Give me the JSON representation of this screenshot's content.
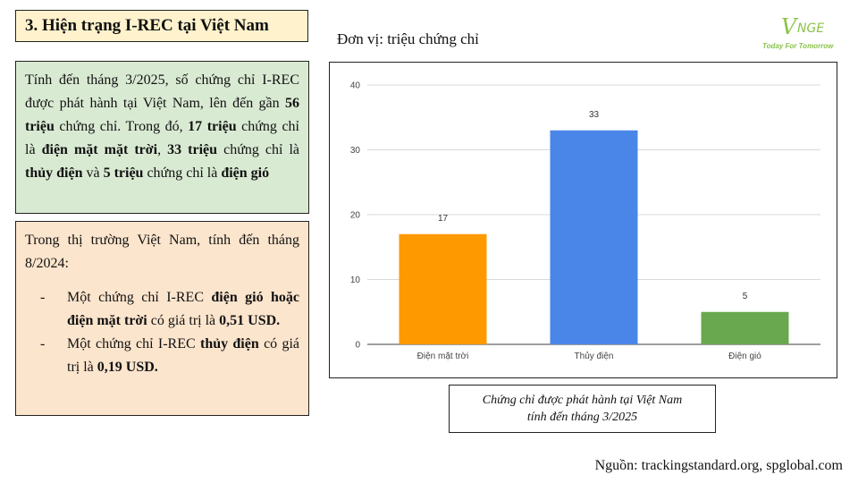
{
  "slide": {
    "title": "3. Hiện trạng I-REC tại Việt Nam",
    "unit_label": "Đơn vị: triệu chứng chỉ",
    "logo": {
      "mark": "V",
      "rest": "NGE",
      "tagline": "Today For Tomorrow"
    },
    "summary_box": {
      "segments": [
        {
          "text": "Tính đến tháng 3/2025, số chứng chỉ I-REC được phát hành tại Việt Nam, lên đến gần ",
          "bold": false
        },
        {
          "text": "56 triệu",
          "bold": true
        },
        {
          "text": " chứng chỉ. Trong đó, ",
          "bold": false
        },
        {
          "text": "17 triệu",
          "bold": true
        },
        {
          "text": " chứng chỉ là ",
          "bold": false
        },
        {
          "text": "điện mặt mặt trời",
          "bold": true
        },
        {
          "text": ", ",
          "bold": false
        },
        {
          "text": "33 triệu",
          "bold": true
        },
        {
          "text": " chứng chỉ là ",
          "bold": false
        },
        {
          "text": "thủy điện",
          "bold": true
        },
        {
          "text": " và ",
          "bold": false
        },
        {
          "text": "5 triệu",
          "bold": true
        },
        {
          "text": " chứng chỉ là ",
          "bold": false
        },
        {
          "text": "điện gió",
          "bold": true
        }
      ]
    },
    "market_box": {
      "intro": "Trong thị trường Việt Nam, tính đến tháng 8/2024:",
      "bullet_marker": "-",
      "bullets": [
        {
          "segments": [
            {
              "text": "Một chứng chỉ I-REC ",
              "bold": false
            },
            {
              "text": "điện gió hoặc điện mặt trời",
              "bold": true
            },
            {
              "text": " có giá trị là ",
              "bold": false
            },
            {
              "text": "0,51 USD.",
              "bold": true
            }
          ]
        },
        {
          "segments": [
            {
              "text": "Một chứng chỉ I-REC ",
              "bold": false
            },
            {
              "text": "thủy điện",
              "bold": true
            },
            {
              "text": " có giá trị là ",
              "bold": false
            },
            {
              "text": "0,19 USD.",
              "bold": true
            }
          ]
        }
      ]
    },
    "caption": {
      "line1": "Chứng chỉ được phát hành tại Việt Nam",
      "line2": "tính đến tháng 3/2025"
    },
    "source": "Nguồn: trackingstandard.org, spglobal.com"
  },
  "chart_data": {
    "type": "bar",
    "categories": [
      "Điện mặt trời",
      "Thủy điện",
      "Điện gió"
    ],
    "values": [
      17,
      33,
      5
    ],
    "data_labels": [
      "17",
      "33",
      "5"
    ],
    "yticks": [
      "0",
      "10",
      "20",
      "30",
      "40"
    ],
    "ylim": [
      0,
      40
    ],
    "colors": [
      "#ff9900",
      "#4a86e8",
      "#6aa84f"
    ],
    "grid": true,
    "title": "",
    "xlabel": "",
    "ylabel": ""
  }
}
